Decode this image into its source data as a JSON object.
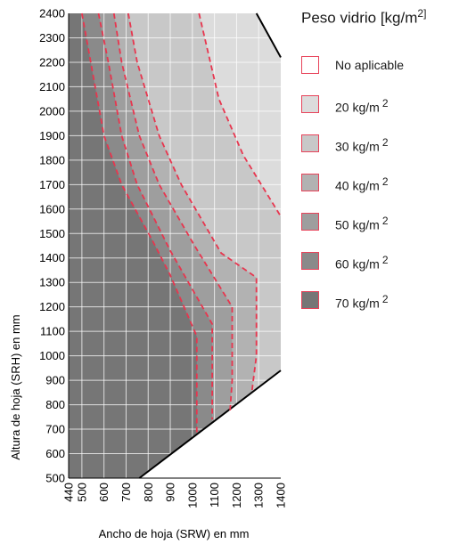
{
  "chart_data": {
    "type": "area",
    "xlabel": "Ancho de hoja (SRW) en mm",
    "ylabel": "Altura de hoja (SRH) en mm",
    "xlim": [
      440,
      1400
    ],
    "ylim": [
      500,
      2400
    ],
    "x_ticks": [
      440,
      500,
      600,
      700,
      800,
      900,
      1000,
      1100,
      1200,
      1300,
      1400
    ],
    "y_ticks": [
      500,
      600,
      700,
      800,
      900,
      1000,
      1100,
      1200,
      1300,
      1400,
      1500,
      1600,
      1700,
      1800,
      1900,
      2000,
      2100,
      2200,
      2300,
      2400
    ],
    "grid": true,
    "legend": {
      "title": "Peso vidrio [kg/m",
      "title_sup": "2]",
      "placement": "right",
      "items": [
        {
          "label": "No aplicable",
          "sup": "",
          "color": "#ffffff"
        },
        {
          "label": "20 kg/m",
          "sup": "2",
          "color": "#dcdcdc"
        },
        {
          "label": "30 kg/m",
          "sup": "2",
          "color": "#c8c8c8"
        },
        {
          "label": "40 kg/m",
          "sup": "2",
          "color": "#b2b2b2"
        },
        {
          "label": "50 kg/m",
          "sup": "2",
          "color": "#9e9e9e"
        },
        {
          "label": "60 kg/m",
          "sup": "2",
          "color": "#8a8a8a"
        },
        {
          "label": "70 kg/m",
          "sup": "2",
          "color": "#767676"
        }
      ]
    },
    "boundaries": {
      "top_right": [
        [
          1290,
          2400
        ],
        [
          1400,
          2220
        ]
      ],
      "bottom_right": [
        [
          760,
          500
        ],
        [
          1400,
          940
        ]
      ]
    },
    "series": [
      {
        "name": "20 kg/m2",
        "points": [
          [
            1030,
            2400
          ],
          [
            1120,
            2050
          ],
          [
            1230,
            1820
          ],
          [
            1400,
            1570
          ]
        ]
      },
      {
        "name": "30 kg/m2",
        "points": [
          [
            710,
            2400
          ],
          [
            750,
            2200
          ],
          [
            850,
            1900
          ],
          [
            950,
            1700
          ],
          [
            1130,
            1420
          ],
          [
            1290,
            1320
          ],
          [
            1290,
            1000
          ],
          [
            1270,
            860
          ]
        ]
      },
      {
        "name": "40 kg/m2",
        "points": [
          [
            645,
            2400
          ],
          [
            680,
            2200
          ],
          [
            760,
            1900
          ],
          [
            850,
            1700
          ],
          [
            1010,
            1450
          ],
          [
            1180,
            1200
          ],
          [
            1180,
            900
          ],
          [
            1170,
            770
          ]
        ]
      },
      {
        "name": "50 kg/m2",
        "points": [
          [
            575,
            2400
          ],
          [
            620,
            2200
          ],
          [
            680,
            1900
          ],
          [
            750,
            1700
          ],
          [
            900,
            1430
          ],
          [
            1090,
            1130
          ],
          [
            1090,
            740
          ]
        ]
      },
      {
        "name": "60 kg/m2",
        "points": [
          [
            500,
            2400
          ],
          [
            540,
            2200
          ],
          [
            600,
            1900
          ],
          [
            680,
            1700
          ],
          [
            820,
            1470
          ],
          [
            900,
            1330
          ],
          [
            1020,
            1080
          ],
          [
            1020,
            680
          ]
        ]
      }
    ]
  }
}
